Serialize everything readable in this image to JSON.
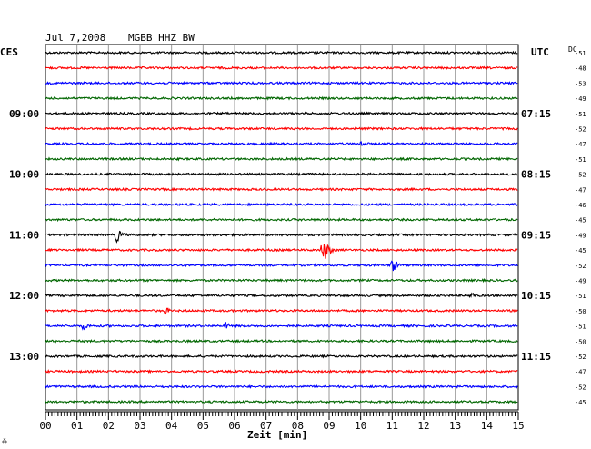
{
  "header": {
    "date": "Jul 7,2008",
    "station": "MGBB HHZ BW",
    "left_timezone": "CES",
    "right_timezone": "UTC",
    "dc_label": "DC"
  },
  "chart_data": {
    "type": "line",
    "title": "Jul 7,2008   MGBB HHZ BW",
    "xlabel": "Zeit [min]",
    "xlim": [
      0,
      15
    ],
    "x_ticks": [
      "00",
      "01",
      "02",
      "03",
      "04",
      "05",
      "06",
      "07",
      "08",
      "09",
      "10",
      "11",
      "12",
      "13",
      "14",
      "15"
    ],
    "grid": true,
    "trace_colors": [
      "#000000",
      "#ff0000",
      "#0000ff",
      "#006600"
    ],
    "left_hour_labels": [
      {
        "row": 4,
        "text": "09:00"
      },
      {
        "row": 8,
        "text": "10:00"
      },
      {
        "row": 12,
        "text": "11:00"
      },
      {
        "row": 16,
        "text": "12:00"
      },
      {
        "row": 20,
        "text": "13:00"
      }
    ],
    "right_hour_labels": [
      {
        "row": 4,
        "text": "07:15"
      },
      {
        "row": 8,
        "text": "08:15"
      },
      {
        "row": 12,
        "text": "09:15"
      },
      {
        "row": 16,
        "text": "10:15"
      },
      {
        "row": 20,
        "text": "11:15"
      }
    ],
    "dc_offsets": [
      "-51",
      "-48",
      "-53",
      "-49",
      "-51",
      "-52",
      "-47",
      "-51",
      "-52",
      "-47",
      "-46",
      "-45",
      "-49",
      "-45",
      "-52",
      "-49",
      "-51",
      "-50",
      "-51",
      "-50",
      "-52",
      "-47",
      "-52",
      "-45"
    ],
    "events": [
      {
        "row": 12,
        "minute": 2.25,
        "amplitude": 2.5
      },
      {
        "row": 13,
        "minute": 8.8,
        "amplitude": 4.5
      },
      {
        "row": 14,
        "minute": 11.0,
        "amplitude": 2.4
      },
      {
        "row": 6,
        "minute": 10.0,
        "amplitude": 1.5
      },
      {
        "row": 18,
        "minute": 1.2,
        "amplitude": 1.3
      },
      {
        "row": 18,
        "minute": 5.7,
        "amplitude": 1.3
      },
      {
        "row": 17,
        "minute": 3.8,
        "amplitude": 1.2
      },
      {
        "row": 16,
        "minute": 13.5,
        "amplitude": 1.2
      }
    ]
  }
}
